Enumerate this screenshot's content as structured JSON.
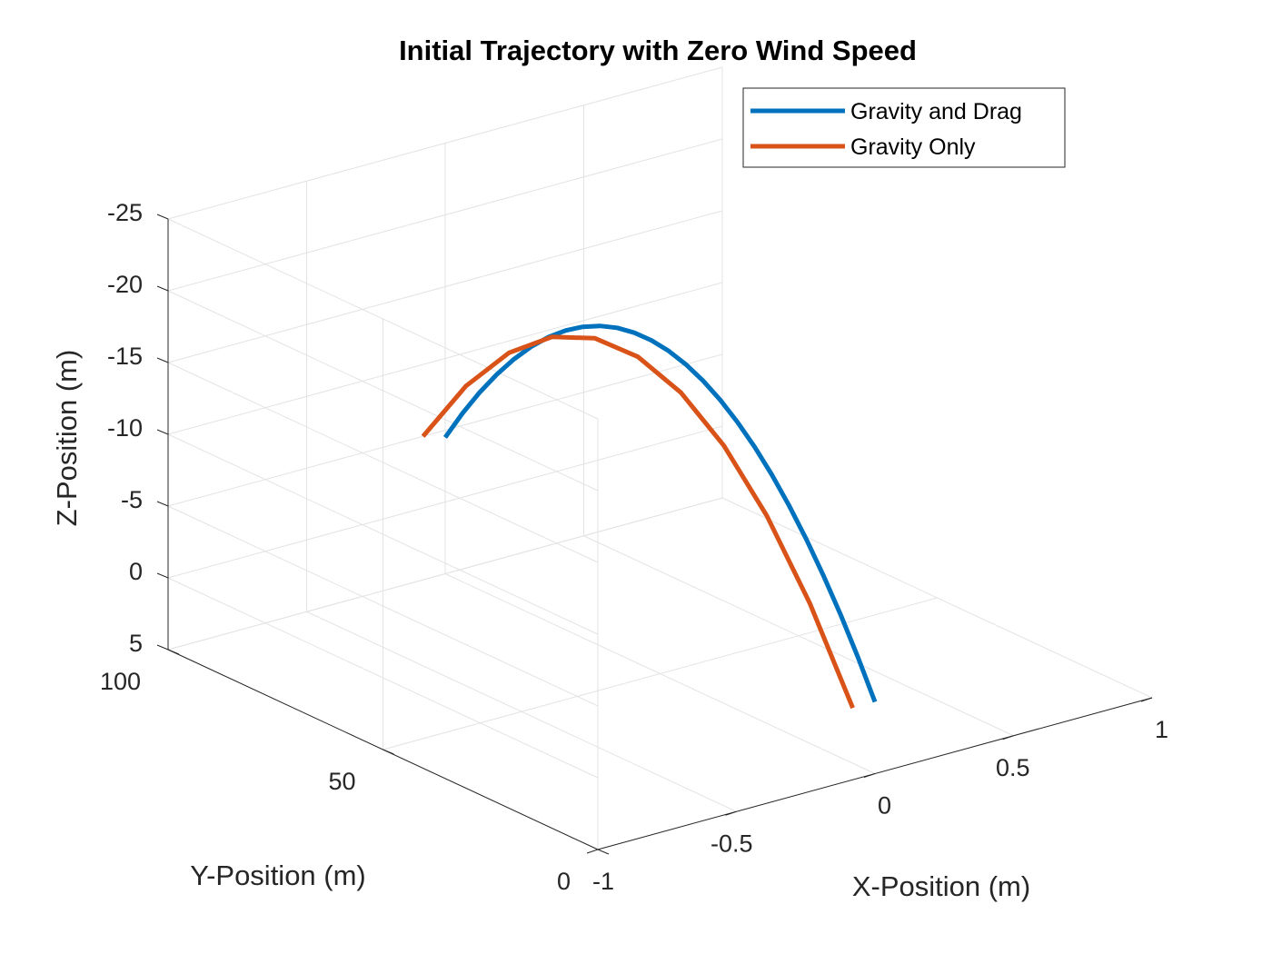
{
  "chart_data": {
    "type": "line",
    "projection": "3d",
    "title": "Initial Trajectory with Zero Wind Speed",
    "xlabel": "X-Position (m)",
    "ylabel": "Y-Position (m)",
    "zlabel": "Z-Position (m)",
    "xlim": [
      -1,
      1
    ],
    "ylim": [
      0,
      100
    ],
    "zlim": [
      -25,
      5
    ],
    "z_direction": "reversed",
    "grid": true,
    "legend_position": "top-right",
    "x_ticks": [
      "-1",
      "-0.5",
      "0",
      "0.5",
      "1"
    ],
    "y_ticks": [
      "0",
      "50",
      "100"
    ],
    "z_ticks": [
      "-25",
      "-20",
      "-15",
      "-10",
      "-5",
      "0",
      "5"
    ],
    "x_tick_values": [
      -1,
      -0.5,
      0,
      0.5,
      1
    ],
    "y_tick_values": [
      0,
      50,
      100
    ],
    "z_tick_values": [
      -25,
      -20,
      -15,
      -10,
      -5,
      0,
      5
    ],
    "series": [
      {
        "name": "Gravity and Drag",
        "color": "#0072BD",
        "x": [
          0,
          0,
          0,
          0,
          0,
          0,
          0,
          0,
          0,
          0,
          0,
          0,
          0,
          0,
          0,
          0,
          0,
          0,
          0,
          0,
          0,
          0,
          0,
          0,
          0,
          0
        ],
        "y": [
          0,
          4,
          8,
          12,
          16,
          20,
          24,
          28,
          32,
          36,
          40,
          44,
          48,
          52,
          56,
          60,
          64,
          68,
          72,
          76,
          80,
          84,
          88,
          92,
          96,
          100
        ],
        "z": [
          0,
          -2.58,
          -4.96,
          -7.14,
          -9.12,
          -10.9,
          -12.48,
          -13.86,
          -15.04,
          -16.02,
          -16.8,
          -17.38,
          -17.76,
          -17.94,
          -17.92,
          -17.7,
          -17.28,
          -16.66,
          -15.84,
          -14.82,
          -13.6,
          -12.18,
          -10.56,
          -8.74,
          -6.72,
          -4.5
        ]
      },
      {
        "name": "Gravity Only",
        "color": "#D95319",
        "x": [
          0,
          0,
          0,
          0,
          0,
          0,
          0,
          0,
          0,
          0,
          0
        ],
        "y": [
          0,
          10,
          20,
          30,
          40,
          50,
          60,
          70,
          80,
          90,
          100
        ],
        "z": [
          0,
          -5.9,
          -10.6,
          -14.1,
          -16.4,
          -17.5,
          -17.4,
          -16.1,
          -13.6,
          -9.9,
          -5.0
        ]
      }
    ]
  }
}
